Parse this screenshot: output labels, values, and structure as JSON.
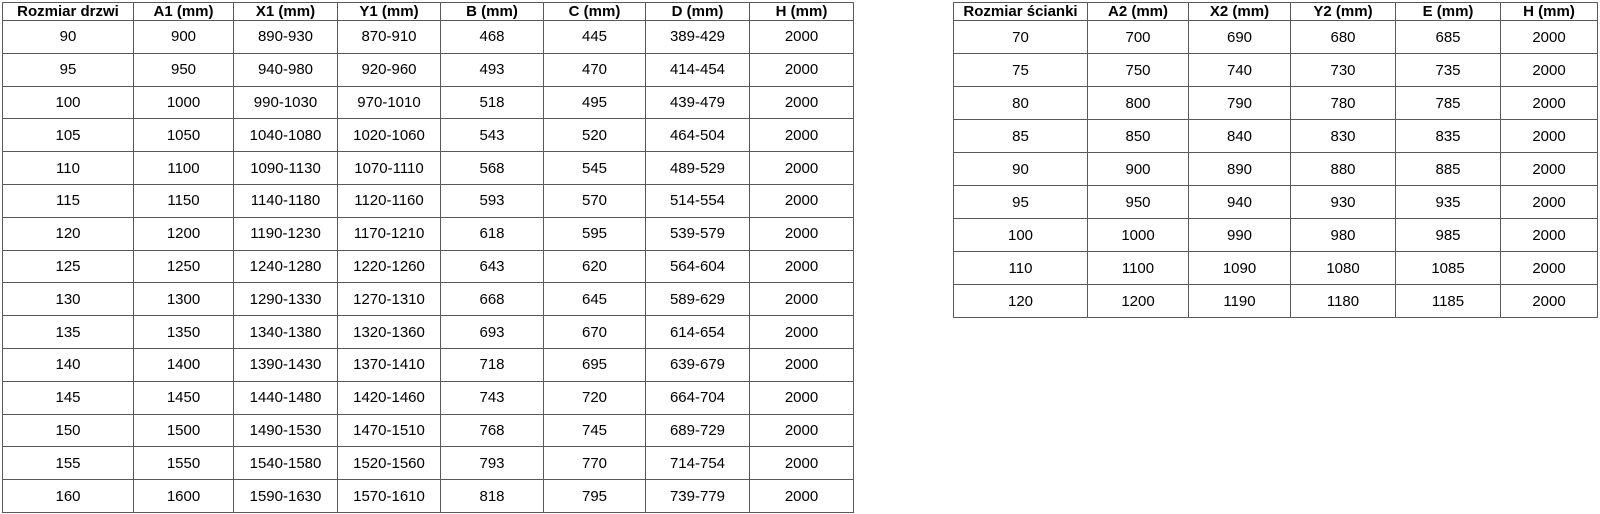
{
  "colors": {
    "background": "#ffffff",
    "table_border": "#595959",
    "text": "#000000"
  },
  "doors_table": {
    "headers": [
      "Rozmiar drzwi",
      "A1 (mm)",
      "X1 (mm)",
      "Y1 (mm)",
      "B (mm)",
      "C (mm)",
      "D (mm)",
      "H (mm)"
    ],
    "rows": [
      [
        "90",
        "900",
        "890-930",
        "870-910",
        "468",
        "445",
        "389-429",
        "2000"
      ],
      [
        "95",
        "950",
        "940-980",
        "920-960",
        "493",
        "470",
        "414-454",
        "2000"
      ],
      [
        "100",
        "1000",
        "990-1030",
        "970-1010",
        "518",
        "495",
        "439-479",
        "2000"
      ],
      [
        "105",
        "1050",
        "1040-1080",
        "1020-1060",
        "543",
        "520",
        "464-504",
        "2000"
      ],
      [
        "110",
        "1100",
        "1090-1130",
        "1070-1110",
        "568",
        "545",
        "489-529",
        "2000"
      ],
      [
        "115",
        "1150",
        "1140-1180",
        "1120-1160",
        "593",
        "570",
        "514-554",
        "2000"
      ],
      [
        "120",
        "1200",
        "1190-1230",
        "1170-1210",
        "618",
        "595",
        "539-579",
        "2000"
      ],
      [
        "125",
        "1250",
        "1240-1280",
        "1220-1260",
        "643",
        "620",
        "564-604",
        "2000"
      ],
      [
        "130",
        "1300",
        "1290-1330",
        "1270-1310",
        "668",
        "645",
        "589-629",
        "2000"
      ],
      [
        "135",
        "1350",
        "1340-1380",
        "1320-1360",
        "693",
        "670",
        "614-654",
        "2000"
      ],
      [
        "140",
        "1400",
        "1390-1430",
        "1370-1410",
        "718",
        "695",
        "639-679",
        "2000"
      ],
      [
        "145",
        "1450",
        "1440-1480",
        "1420-1460",
        "743",
        "720",
        "664-704",
        "2000"
      ],
      [
        "150",
        "1500",
        "1490-1530",
        "1470-1510",
        "768",
        "745",
        "689-729",
        "2000"
      ],
      [
        "155",
        "1550",
        "1540-1580",
        "1520-1560",
        "793",
        "770",
        "714-754",
        "2000"
      ],
      [
        "160",
        "1600",
        "1590-1630",
        "1570-1610",
        "818",
        "795",
        "739-779",
        "2000"
      ]
    ]
  },
  "walls_table": {
    "headers": [
      "Rozmiar ścianki",
      "A2 (mm)",
      "X2 (mm)",
      "Y2 (mm)",
      "E (mm)",
      "H (mm)"
    ],
    "rows": [
      [
        "70",
        "700",
        "690",
        "680",
        "685",
        "2000"
      ],
      [
        "75",
        "750",
        "740",
        "730",
        "735",
        "2000"
      ],
      [
        "80",
        "800",
        "790",
        "780",
        "785",
        "2000"
      ],
      [
        "85",
        "850",
        "840",
        "830",
        "835",
        "2000"
      ],
      [
        "90",
        "900",
        "890",
        "880",
        "885",
        "2000"
      ],
      [
        "95",
        "950",
        "940",
        "930",
        "935",
        "2000"
      ],
      [
        "100",
        "1000",
        "990",
        "980",
        "985",
        "2000"
      ],
      [
        "110",
        "1100",
        "1090",
        "1080",
        "1085",
        "2000"
      ],
      [
        "120",
        "1200",
        "1190",
        "1180",
        "1185",
        "2000"
      ]
    ]
  }
}
